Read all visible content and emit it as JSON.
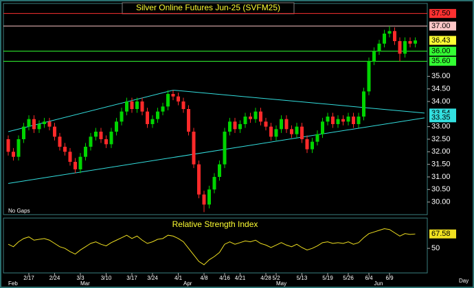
{
  "chart_data": [
    {
      "type": "candlestick",
      "title": "Silver Online Futures Jun-25 (SVFM25)",
      "annotation": "No Gaps",
      "x_label": "Day",
      "up_color": "#00d400",
      "down_color": "#ff2a2a",
      "categories": [
        null,
        null,
        null,
        null,
        "2/17",
        null,
        null,
        null,
        null,
        "2/24",
        null,
        null,
        null,
        null,
        "3/3",
        null,
        null,
        null,
        null,
        "3/10",
        null,
        null,
        null,
        null,
        "3/17",
        null,
        null,
        null,
        "3/24",
        null,
        null,
        null,
        null,
        "4/1",
        null,
        null,
        null,
        null,
        "4/8",
        null,
        null,
        null,
        "4/16",
        null,
        null,
        "4/21",
        null,
        null,
        null,
        null,
        "4/28",
        null,
        "5/2",
        null,
        null,
        null,
        null,
        "5/13",
        null,
        null,
        null,
        null,
        "5/19",
        null,
        null,
        null,
        "5/26",
        null,
        null,
        null,
        "6/4",
        null,
        null,
        null,
        "6/9",
        null,
        null,
        null,
        null,
        null
      ],
      "month_labels": [
        "Feb",
        null,
        null,
        null,
        null,
        null,
        null,
        null,
        null,
        null,
        null,
        null,
        null,
        null,
        "Mar",
        null,
        null,
        null,
        null,
        null,
        null,
        null,
        null,
        null,
        null,
        null,
        null,
        null,
        null,
        null,
        null,
        null,
        null,
        null,
        "Apr",
        null,
        null,
        null,
        null,
        null,
        null,
        null,
        null,
        null,
        null,
        null,
        null,
        null,
        null,
        null,
        null,
        null,
        "May",
        null,
        null,
        null,
        null,
        null,
        null,
        null,
        null,
        null,
        null,
        null,
        null,
        null,
        null,
        null,
        null,
        null,
        null,
        "Jun",
        null,
        null,
        null,
        null,
        null,
        null,
        null,
        null
      ],
      "open": [
        32.5,
        32.0,
        31.8,
        32.5,
        33.0,
        33.3,
        32.9,
        33.1,
        33.2,
        33.0,
        32.6,
        32.2,
        32.0,
        31.6,
        31.3,
        31.8,
        32.2,
        32.6,
        32.8,
        32.5,
        32.3,
        32.8,
        33.2,
        33.6,
        34.0,
        33.7,
        34.0,
        33.6,
        33.1,
        33.3,
        33.6,
        33.8,
        34.3,
        34.2,
        34.0,
        33.7,
        32.8,
        31.5,
        30.3,
        29.9,
        30.5,
        31.0,
        31.5,
        32.8,
        33.2,
        32.9,
        33.1,
        33.4,
        33.3,
        33.6,
        33.2,
        33.0,
        32.6,
        32.9,
        33.3,
        32.9,
        32.7,
        33.0,
        32.5,
        32.1,
        32.4,
        32.7,
        33.2,
        33.4,
        33.1,
        33.3,
        33.2,
        33.4,
        33.1,
        33.4,
        34.4,
        35.6,
        36.0,
        36.3,
        36.7,
        36.8,
        36.4,
        35.9,
        36.4,
        36.3
      ],
      "high": [
        32.65,
        32.15,
        32.65,
        33.15,
        33.45,
        33.45,
        33.25,
        33.35,
        33.35,
        33.15,
        32.75,
        32.35,
        32.15,
        31.75,
        31.95,
        32.35,
        32.75,
        32.95,
        32.95,
        32.65,
        32.95,
        33.35,
        33.75,
        34.15,
        34.15,
        34.15,
        34.15,
        33.75,
        33.45,
        33.75,
        33.95,
        34.45,
        34.45,
        34.35,
        34.15,
        33.85,
        32.95,
        31.65,
        30.45,
        30.65,
        31.15,
        31.65,
        32.95,
        33.35,
        33.35,
        33.25,
        33.55,
        33.55,
        33.75,
        33.75,
        33.35,
        33.15,
        33.05,
        33.45,
        33.45,
        33.05,
        33.15,
        33.15,
        32.65,
        32.55,
        32.85,
        33.35,
        33.55,
        33.55,
        33.45,
        33.45,
        33.55,
        33.55,
        33.55,
        34.55,
        35.75,
        36.15,
        36.45,
        36.85,
        37.0,
        36.95,
        36.55,
        36.55,
        36.55,
        36.55
      ],
      "low": [
        31.85,
        31.65,
        31.65,
        32.35,
        32.85,
        32.75,
        32.75,
        32.95,
        32.85,
        32.45,
        32.05,
        31.85,
        31.45,
        31.15,
        31.15,
        31.65,
        32.05,
        32.45,
        32.35,
        32.15,
        32.15,
        32.65,
        33.05,
        33.45,
        33.55,
        33.55,
        33.45,
        32.95,
        32.95,
        33.15,
        33.45,
        33.65,
        34.05,
        33.85,
        33.55,
        32.65,
        31.35,
        30.15,
        29.6,
        29.75,
        30.35,
        30.85,
        31.35,
        32.65,
        32.75,
        32.75,
        32.95,
        33.15,
        33.15,
        33.05,
        32.85,
        32.45,
        32.45,
        32.75,
        32.75,
        32.55,
        32.55,
        32.35,
        31.95,
        31.95,
        32.25,
        32.55,
        33.05,
        32.95,
        32.95,
        33.05,
        33.05,
        32.95,
        32.95,
        33.25,
        34.25,
        35.45,
        35.85,
        36.15,
        36.55,
        36.25,
        35.6,
        35.75,
        36.15,
        36.15
      ],
      "close": [
        32.0,
        31.8,
        32.5,
        33.0,
        33.3,
        32.9,
        33.1,
        33.2,
        33.0,
        32.6,
        32.2,
        32.0,
        31.6,
        31.3,
        31.8,
        32.2,
        32.6,
        32.8,
        32.5,
        32.3,
        32.8,
        33.2,
        33.6,
        34.0,
        33.7,
        34.0,
        33.6,
        33.1,
        33.3,
        33.6,
        33.8,
        34.3,
        34.2,
        34.0,
        33.7,
        32.8,
        31.5,
        30.3,
        29.9,
        30.5,
        31.0,
        31.5,
        32.8,
        33.2,
        32.9,
        33.1,
        33.4,
        33.3,
        33.6,
        33.2,
        33.0,
        32.6,
        32.9,
        33.3,
        32.9,
        32.7,
        33.0,
        32.5,
        32.1,
        32.4,
        32.7,
        33.2,
        33.4,
        33.1,
        33.3,
        33.2,
        33.4,
        33.1,
        33.4,
        34.4,
        35.6,
        36.0,
        36.3,
        36.7,
        36.8,
        36.4,
        35.9,
        36.4,
        36.3,
        36.43
      ],
      "last_label_color": "#ffff33",
      "ylim": [
        29.5,
        37.9
      ],
      "yticks": [
        {
          "value": 30,
          "label": "30.00"
        },
        {
          "value": 30.5,
          "label": "30.50"
        },
        {
          "value": 31,
          "label": "31.00"
        },
        {
          "value": 31.5,
          "label": "31.50"
        },
        {
          "value": 32,
          "label": "32.00"
        },
        {
          "value": 32.5,
          "label": "32.50"
        },
        {
          "value": 33,
          "label": "33.00"
        },
        {
          "value": 34,
          "label": "34.00"
        },
        {
          "value": 34.5,
          "label": "34.50"
        },
        {
          "value": 35,
          "label": "35.00"
        }
      ],
      "levels": [
        {
          "value": 37.5,
          "label": "37.50",
          "color": "#ff3030"
        },
        {
          "value": 37,
          "label": "37.00",
          "color": "#ffc8c8"
        },
        {
          "value": 36,
          "label": "36.00",
          "color": "#33ff33"
        },
        {
          "value": 35.6,
          "label": "35.60",
          "color": "#33ff33"
        }
      ],
      "trendlines": [
        {
          "x": [
            0,
            32,
            80.8
          ],
          "y": [
            32.8,
            34.45,
            33.54
          ],
          "color": "#33e0e0"
        },
        {
          "x": [
            0,
            80.8
          ],
          "y": [
            30.74,
            33.35
          ],
          "color": "#33e0e0"
        }
      ]
    },
    {
      "type": "line",
      "title": "Relative Strength Index",
      "color": "#f0e020",
      "values": [
        55,
        52,
        58,
        62,
        64,
        60,
        61,
        62,
        60,
        56,
        52,
        50,
        46,
        43,
        48,
        52,
        56,
        58,
        55,
        53,
        57,
        60,
        63,
        66,
        62,
        65,
        60,
        56,
        58,
        61,
        62,
        66,
        65,
        62,
        58,
        50,
        42,
        34,
        30,
        36,
        40,
        45,
        55,
        58,
        55,
        57,
        59,
        58,
        60,
        56,
        54,
        51,
        54,
        57,
        54,
        52,
        55,
        51,
        48,
        50,
        53,
        57,
        58,
        56,
        57,
        56,
        58,
        55,
        57,
        63,
        68,
        70,
        72,
        74,
        73,
        69,
        65,
        68,
        67,
        67.58
      ],
      "ylim": [
        20,
        87
      ],
      "yticks": [
        50
      ]
    }
  ]
}
